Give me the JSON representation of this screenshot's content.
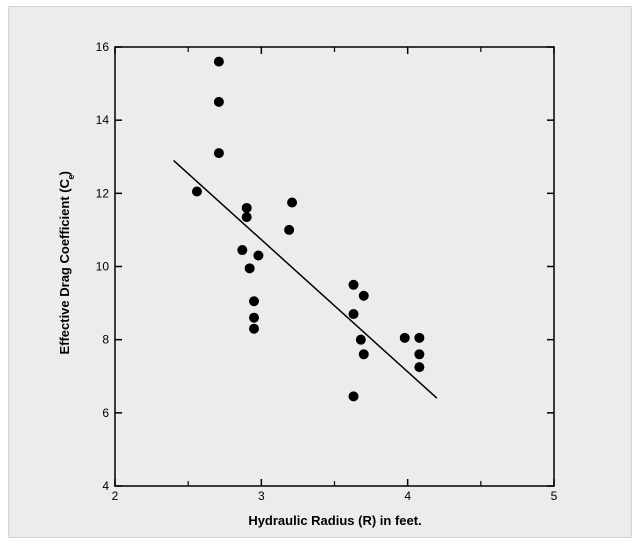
{
  "chart_data": {
    "type": "scatter",
    "xlabel": "Hydraulic Radius (R) in feet.",
    "ylabel": "Effective Drag Coefficient (C  )",
    "ylabel_sub": "e",
    "xlim": [
      2,
      5
    ],
    "ylim": [
      4,
      16
    ],
    "x_ticks": [
      2,
      3,
      4,
      5
    ],
    "x_tick_labels": [
      "2",
      "3",
      "4",
      "5"
    ],
    "x_minor_ticks": [
      2.5,
      3.5,
      4.5
    ],
    "y_ticks": [
      4,
      6,
      8,
      10,
      12,
      14,
      16
    ],
    "y_tick_labels": [
      "4",
      "6",
      "8",
      "10",
      "12",
      "14",
      "16"
    ],
    "grid": false,
    "points": [
      {
        "x": 2.56,
        "y": 12.05
      },
      {
        "x": 2.71,
        "y": 15.6
      },
      {
        "x": 2.71,
        "y": 14.5
      },
      {
        "x": 2.71,
        "y": 13.1
      },
      {
        "x": 2.87,
        "y": 10.45
      },
      {
        "x": 2.9,
        "y": 11.6
      },
      {
        "x": 2.9,
        "y": 11.35
      },
      {
        "x": 2.92,
        "y": 9.95
      },
      {
        "x": 2.95,
        "y": 9.05
      },
      {
        "x": 2.95,
        "y": 8.6
      },
      {
        "x": 2.95,
        "y": 8.3
      },
      {
        "x": 2.98,
        "y": 10.3
      },
      {
        "x": 3.19,
        "y": 11.0
      },
      {
        "x": 3.21,
        "y": 11.75
      },
      {
        "x": 3.63,
        "y": 9.5
      },
      {
        "x": 3.63,
        "y": 8.7
      },
      {
        "x": 3.63,
        "y": 6.45
      },
      {
        "x": 3.68,
        "y": 8.0
      },
      {
        "x": 3.7,
        "y": 9.2
      },
      {
        "x": 3.7,
        "y": 7.6
      },
      {
        "x": 3.98,
        "y": 8.05
      },
      {
        "x": 4.08,
        "y": 8.05
      },
      {
        "x": 4.08,
        "y": 7.6
      },
      {
        "x": 4.08,
        "y": 7.25
      }
    ],
    "trendline": [
      {
        "x": 2.4,
        "y": 12.9
      },
      {
        "x": 4.2,
        "y": 6.4
      }
    ]
  }
}
